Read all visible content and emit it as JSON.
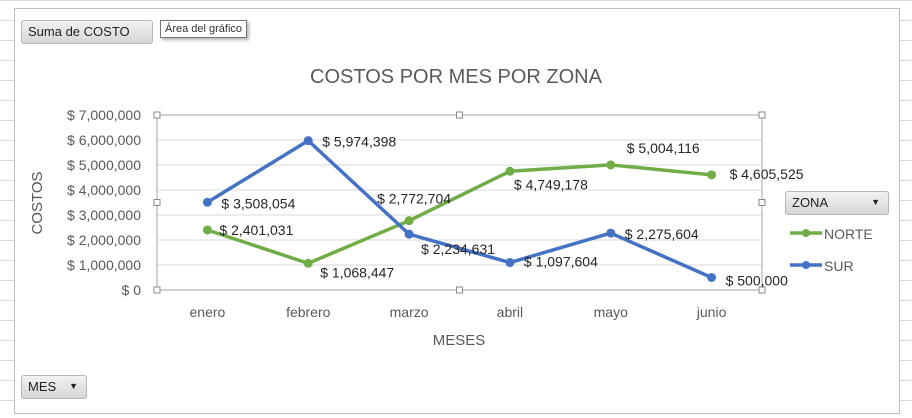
{
  "pivot_buttons": {
    "value_field": "Suma de COSTO",
    "legend_field": "ZONA",
    "axis_field": "MES"
  },
  "tooltip": "Área del gráfico",
  "colors": {
    "NORTE": "#70ad47",
    "SUR": "#4472c4"
  },
  "chart_data": {
    "type": "line",
    "title": "COSTOS POR MES POR ZONA",
    "xlabel": "MESES",
    "ylabel": "COSTOS",
    "categories": [
      "enero",
      "febrero",
      "marzo",
      "abril",
      "mayo",
      "junio"
    ],
    "ylim": [
      0,
      7000000
    ],
    "yticks": [
      "$ 0",
      "$ 1,000,000",
      "$ 2,000,000",
      "$ 3,000,000",
      "$ 4,000,000",
      "$ 5,000,000",
      "$ 6,000,000",
      "$ 7,000,000"
    ],
    "grid": true,
    "legend": "right",
    "series": [
      {
        "name": "NORTE",
        "values": [
          2401031,
          1068447,
          2772704,
          4749178,
          5004116,
          4605525
        ],
        "labels": [
          "$ 2,401,031",
          "$ 1,068,447",
          "$ 2,772,704",
          "$ 4,749,178",
          "$ 5,004,116",
          "$ 4,605,525"
        ]
      },
      {
        "name": "SUR",
        "values": [
          3508054,
          5974398,
          2234631,
          1097604,
          2275604,
          500000
        ],
        "labels": [
          "$ 3,508,054",
          "$ 5,974,398",
          "$ 2,234,631",
          "$ 1,097,604",
          "$ 2,275,604",
          "$ 500,000"
        ]
      }
    ]
  }
}
